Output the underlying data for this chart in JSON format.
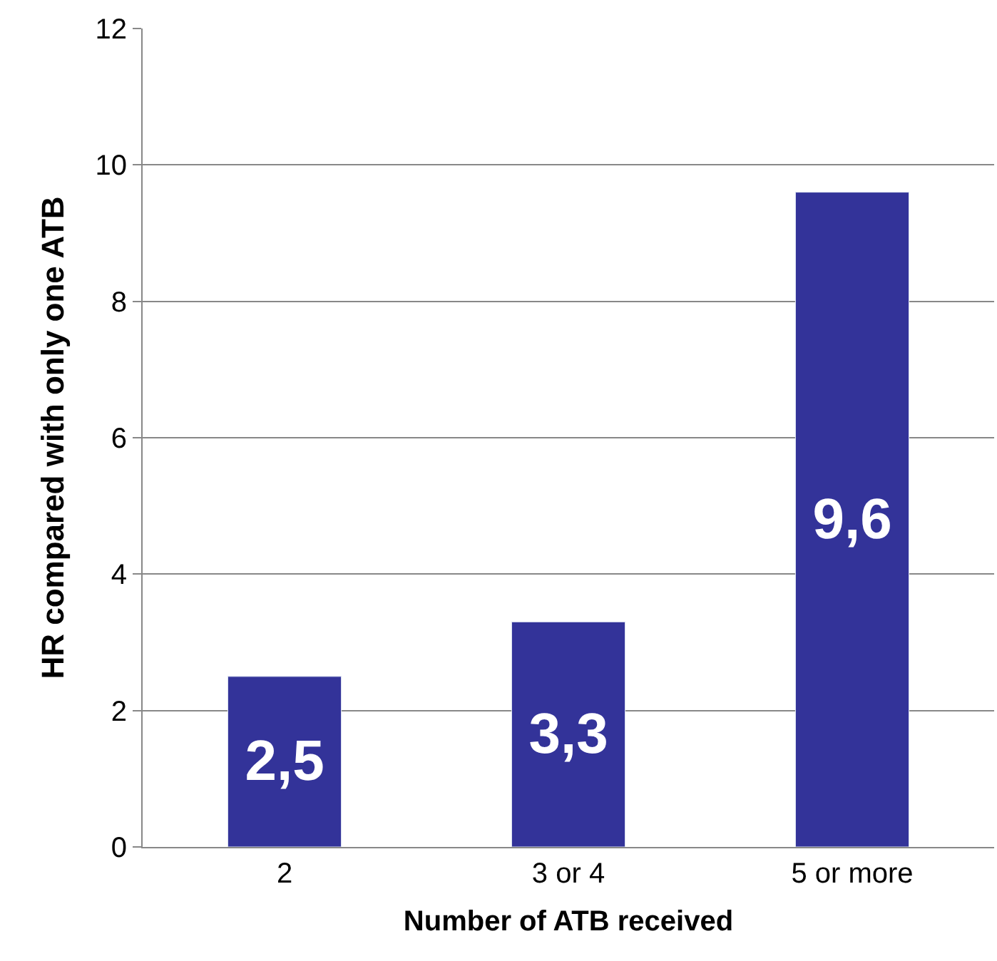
{
  "chart_data": {
    "type": "bar",
    "xlabel": "Number of ATB received",
    "ylabel": "HR compared with only one ATB",
    "categories": [
      "2",
      "3 or 4",
      "5 or more"
    ],
    "values": [
      2.5,
      3.3,
      9.6
    ],
    "value_labels": [
      "2,5",
      "3,3",
      "9,6"
    ],
    "color": "#333399",
    "ylim": [
      0,
      12
    ],
    "yticks": [
      0,
      2,
      4,
      6,
      8,
      10,
      12
    ],
    "grid": "y",
    "legend": false
  }
}
